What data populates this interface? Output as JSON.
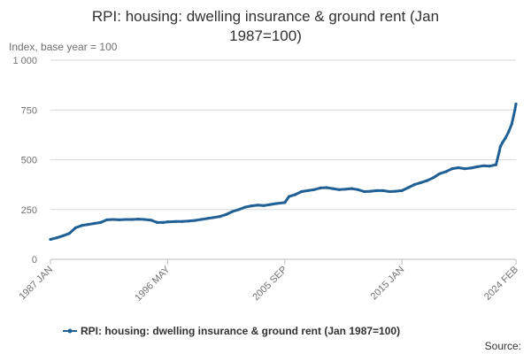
{
  "chart_data": {
    "type": "line",
    "title": "RPI: housing: dwelling insurance & ground rent (Jan 1987=100)",
    "title_lines": [
      "RPI: housing: dwelling insurance & ground rent (Jan",
      "1987=100)"
    ],
    "ylabel": "Index, base year = 100",
    "xlabel": "",
    "ylim": [
      0,
      1000
    ],
    "y_ticks": [
      {
        "value": 0,
        "label": "0"
      },
      {
        "value": 250,
        "label": "250"
      },
      {
        "value": 500,
        "label": "500"
      },
      {
        "value": 750,
        "label": "750"
      },
      {
        "value": 1000,
        "label": "1 000"
      }
    ],
    "x_range": [
      "1987-01",
      "2024-02"
    ],
    "x_ticks": [
      "1987 JAN",
      "1996 MAY",
      "2005 SEP",
      "2015 JAN",
      "2024 FEB"
    ],
    "grid": "horizontal",
    "legend_position": "bottom",
    "colors": {
      "series": "#206095",
      "grid": "#d9d9d9",
      "axis": "#707071"
    },
    "series": [
      {
        "name": "RPI: housing: dwelling insurance & ground rent (Jan 1987=100)",
        "x": [
          "1987-01",
          "1987-07",
          "1988-01",
          "1988-07",
          "1989-01",
          "1989-07",
          "1990-01",
          "1990-07",
          "1991-01",
          "1991-07",
          "1992-01",
          "1992-07",
          "1993-01",
          "1993-07",
          "1994-01",
          "1994-07",
          "1995-01",
          "1995-07",
          "1996-01",
          "1996-05",
          "1997-01",
          "1997-07",
          "1998-01",
          "1998-07",
          "1999-01",
          "1999-07",
          "2000-01",
          "2000-07",
          "2001-01",
          "2001-07",
          "2002-01",
          "2002-07",
          "2003-01",
          "2003-07",
          "2004-01",
          "2004-07",
          "2005-01",
          "2005-09",
          "2006-01",
          "2006-07",
          "2007-01",
          "2007-07",
          "2008-01",
          "2008-07",
          "2009-01",
          "2009-07",
          "2010-01",
          "2010-07",
          "2011-01",
          "2011-07",
          "2012-01",
          "2012-07",
          "2013-01",
          "2013-07",
          "2014-01",
          "2014-07",
          "2015-01",
          "2015-07",
          "2016-01",
          "2016-07",
          "2017-01",
          "2017-07",
          "2018-01",
          "2018-07",
          "2019-01",
          "2019-07",
          "2020-01",
          "2020-07",
          "2021-01",
          "2021-07",
          "2022-01",
          "2022-07",
          "2022-10",
          "2022-11",
          "2023-01",
          "2023-04",
          "2023-07",
          "2023-10",
          "2024-01",
          "2024-02"
        ],
        "values": [
          100,
          108,
          118,
          130,
          158,
          170,
          175,
          180,
          185,
          198,
          200,
          198,
          200,
          200,
          202,
          200,
          197,
          185,
          185,
          188,
          190,
          190,
          192,
          195,
          200,
          205,
          210,
          215,
          225,
          240,
          250,
          262,
          268,
          272,
          270,
          275,
          280,
          285,
          315,
          325,
          340,
          345,
          350,
          358,
          360,
          355,
          350,
          352,
          355,
          350,
          340,
          342,
          345,
          345,
          340,
          342,
          345,
          360,
          375,
          385,
          395,
          410,
          430,
          440,
          455,
          460,
          455,
          458,
          465,
          470,
          468,
          475,
          540,
          565,
          585,
          610,
          640,
          680,
          750,
          780
        ]
      }
    ]
  },
  "legend": {
    "label": "RPI: housing: dwelling insurance & ground rent (Jan 1987=100)"
  },
  "source": {
    "label": "Source:"
  }
}
